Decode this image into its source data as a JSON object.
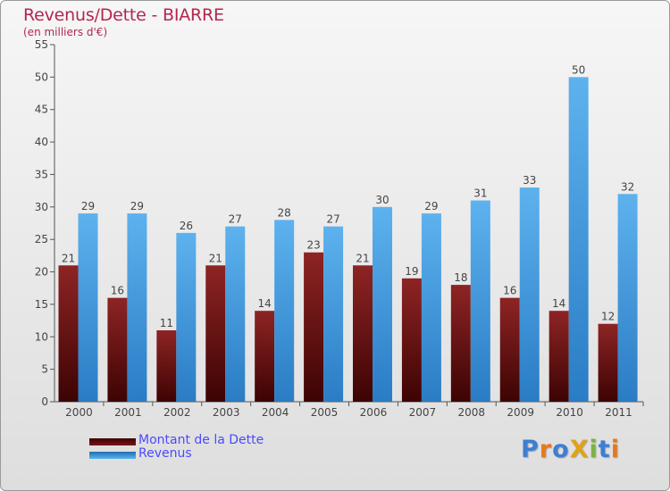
{
  "chart_data": {
    "type": "bar",
    "title": "Revenus/Dette - BIARRE",
    "subtitle": "(en milliers d'€)",
    "categories": [
      "2000",
      "2001",
      "2002",
      "2003",
      "2004",
      "2005",
      "2006",
      "2007",
      "2008",
      "2009",
      "2010",
      "2011"
    ],
    "series": [
      {
        "name": "Montant de la Dette",
        "color": "#8b1a1a",
        "values": [
          21,
          16,
          11,
          21,
          14,
          23,
          21,
          19,
          18,
          16,
          14,
          12
        ]
      },
      {
        "name": "Revenus",
        "color": "#4aa3e0",
        "values": [
          29,
          29,
          26,
          27,
          28,
          27,
          30,
          29,
          31,
          33,
          50,
          32
        ]
      }
    ],
    "ylim": [
      0,
      55
    ],
    "yticks": [
      0,
      5,
      10,
      15,
      20,
      25,
      30,
      35,
      40,
      45,
      50,
      55
    ],
    "grid": false,
    "legend": "bottom-left",
    "data_labels": true
  },
  "logo": {
    "text": "ProXiti",
    "letters": [
      {
        "ch": "P",
        "color": "#3d7fd0"
      },
      {
        "ch": "r",
        "color": "#e57a1f"
      },
      {
        "ch": "o",
        "color": "#3d7fd0"
      },
      {
        "ch": "X",
        "color": "#e0a21a"
      },
      {
        "ch": "i",
        "color": "#7cb342"
      },
      {
        "ch": "t",
        "color": "#3d7fd0"
      },
      {
        "ch": "i",
        "color": "#e57a1f"
      }
    ]
  }
}
